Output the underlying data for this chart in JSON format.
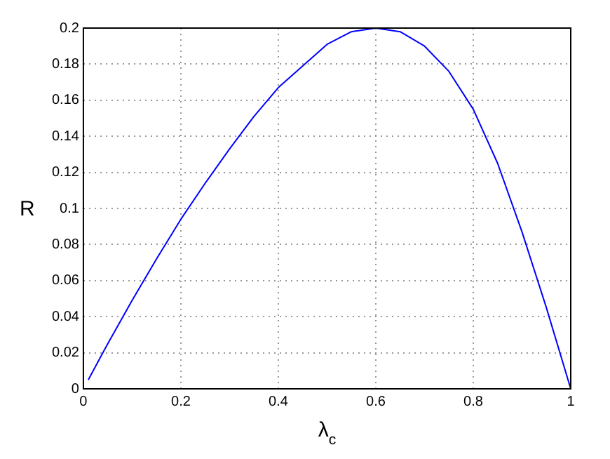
{
  "chart_data": {
    "type": "line",
    "xlabel": "λ$_{c}$",
    "ylabel": "R",
    "x": [
      0.01,
      0.05,
      0.1,
      0.15,
      0.2,
      0.25,
      0.3,
      0.35,
      0.4,
      0.45,
      0.5,
      0.55,
      0.6,
      0.65,
      0.7,
      0.75,
      0.8,
      0.85,
      0.9,
      0.95,
      1.0
    ],
    "series": [
      {
        "color": "#0000ff",
        "values": [
          0.005,
          0.025,
          0.049,
          0.072,
          0.094,
          0.114,
          0.133,
          0.151,
          0.167,
          0.179,
          0.191,
          0.198,
          0.2,
          0.198,
          0.19,
          0.176,
          0.155,
          0.125,
          0.087,
          0.045,
          0
        ]
      }
    ],
    "xlim": [
      0,
      1
    ],
    "xticks": [
      0,
      0.2,
      0.4,
      0.6,
      0.8,
      1
    ],
    "ylim": [
      0,
      0.2
    ],
    "yticks": [
      0,
      0.02,
      0.04,
      0.06,
      0.08,
      0.1,
      0.12,
      0.14,
      0.16,
      0.18,
      0.2
    ],
    "grid": true,
    "marker": "none",
    "line_style": "solid",
    "legend": false
  }
}
